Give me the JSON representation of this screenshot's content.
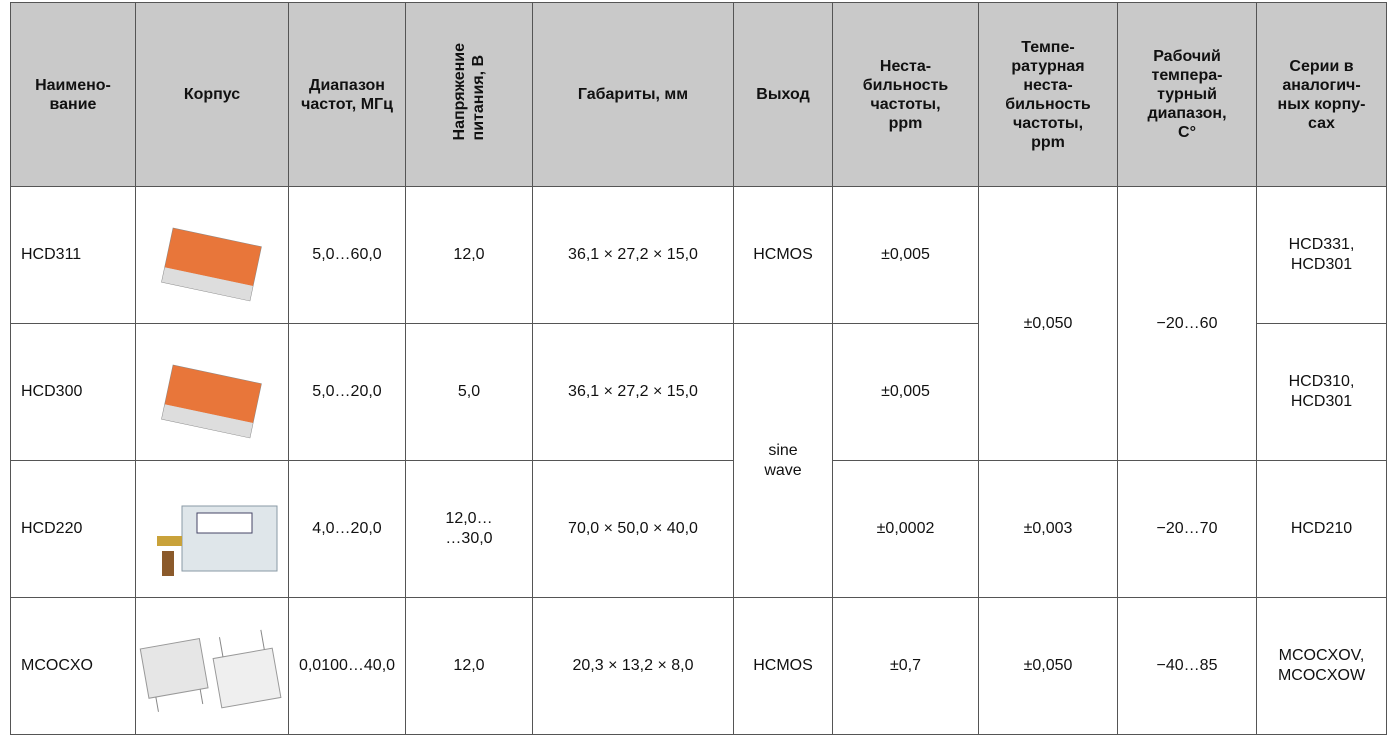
{
  "header": {
    "name": "Наимено-\nвание",
    "package": "Корпус",
    "frequency": "Диапазон\nчастот, МГц",
    "voltage": "Напряжение\nпитания, В",
    "dimensions": "Габариты,  мм",
    "output": "Выход",
    "instability": "Неста-\nбильность\nчастоты,\nppm",
    "temp_instability": "Темпе-\nратурная\nнеста-\nбильность\nчастоты,\nppm",
    "temp_range": "Рабочий\nтемпера-\nтурный\nдиапазон,\nC°",
    "series": "Серии в\nаналогич-\nных корпу-\nсах"
  },
  "table": {
    "rows": [
      {
        "name": "HCD311",
        "frequency": "5,0…60,0",
        "voltage": "12,0",
        "dimensions": "36,1 × 27,2 × 15,0",
        "output": "HCMOS",
        "instability": "±0,005",
        "temp_instability": "±0,050",
        "temp_range": "−20…60",
        "series": "HCD331,\nHCD301"
      },
      {
        "name": "HCD300",
        "frequency": "5,0…20,0",
        "voltage": "5,0",
        "dimensions": "36,1 × 27,2 × 15,0",
        "output": "sine\nwave",
        "instability": "±0,005",
        "series": "HCD310,\nHCD301"
      },
      {
        "name": "HCD220",
        "frequency": "4,0…20,0",
        "voltage": "12,0…\n…30,0",
        "dimensions": "70,0 × 50,0 × 40,0",
        "instability": "±0,0002",
        "temp_instability": "±0,003",
        "temp_range": "−20…70",
        "series": "HCD210"
      },
      {
        "name": "MCOCXO",
        "frequency": "0,0100…40,0",
        "voltage": "12,0",
        "dimensions": "20,3 × 13,2 × 8,0",
        "output": "HCMOS",
        "instability": "±0,7",
        "temp_instability": "±0,050",
        "temp_range": "−40…85",
        "series": "MCOCXOV,\nMCOCXOW"
      }
    ]
  }
}
